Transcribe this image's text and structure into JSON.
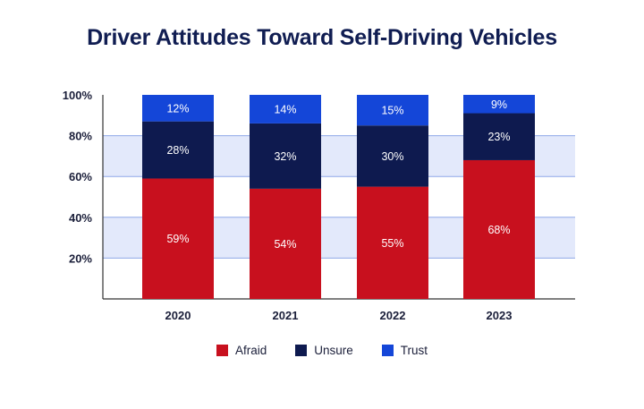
{
  "chart_data": {
    "type": "bar",
    "stacked": true,
    "title": "Driver Attitudes Toward Self-Driving Vehicles",
    "categories": [
      "2020",
      "2021",
      "2022",
      "2023"
    ],
    "series": [
      {
        "name": "Afraid",
        "color": "#c8101e",
        "values": [
          59,
          54,
          55,
          68
        ],
        "labels": [
          "59%",
          "54%",
          "55%",
          "68%"
        ]
      },
      {
        "name": "Unsure",
        "color": "#0e1a4f",
        "values": [
          28,
          32,
          30,
          23
        ],
        "labels": [
          "28%",
          "32%",
          "30%",
          "23%"
        ]
      },
      {
        "name": "Trust",
        "color": "#1446d8",
        "values": [
          12,
          14,
          15,
          9
        ],
        "labels": [
          "12%",
          "14%",
          "15%",
          "9%"
        ]
      }
    ],
    "ylim": [
      0,
      100
    ],
    "yticks": [
      20,
      40,
      60,
      80,
      100
    ],
    "ytick_labels": [
      "20%",
      "40%",
      "60%",
      "80%",
      "100%"
    ],
    "grid_bands": [
      [
        20,
        40
      ],
      [
        60,
        80
      ]
    ],
    "legend_position": "bottom"
  }
}
